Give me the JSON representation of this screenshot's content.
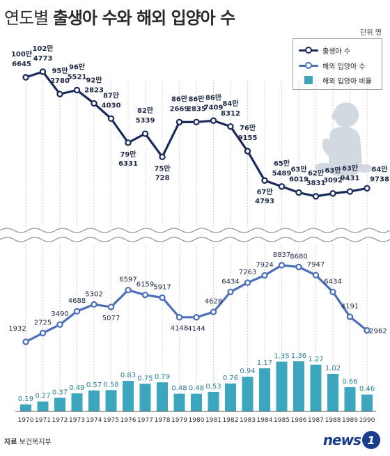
{
  "header": {
    "title_lead": "연도별",
    "title_main": "출생아 수와 해외 입양아 수",
    "unit": "단위 명"
  },
  "legend": {
    "births": "출생아 수",
    "adoptions": "해외 입양아 수",
    "ratio": "해외 입양아 비율"
  },
  "footer": {
    "source_label": "자료",
    "source_name": "보건복지부",
    "logo_text": "news",
    "logo_badge": "1"
  },
  "colors": {
    "births": "#1b2a5c",
    "adoptions": "#4a6fb8",
    "ratio": "#3ba6bd"
  },
  "chart_data": {
    "type": "line",
    "title": "연도별 출생아 수와 해외 입양아 수",
    "unit": "단위 명",
    "x": [
      "1970",
      "1971",
      "1972",
      "1973",
      "1974",
      "1975",
      "1976",
      "1977",
      "1978",
      "1979",
      "1980",
      "1981",
      "1982",
      "1983",
      "1984",
      "1985",
      "1986",
      "1987",
      "1988",
      "1989",
      "1990"
    ],
    "series": [
      {
        "name": "출생아 수",
        "type": "line",
        "values": [
          1006645,
          1024773,
          952780,
          965521,
          922823,
          874030,
          796331,
          825339,
          750728,
          862669,
          862835,
          867409,
          848312,
          769155,
          674793,
          655489,
          636019,
          623831,
          633092,
          639431,
          649738
        ],
        "label_top": [
          "100만",
          "102만",
          "95만",
          "96만",
          "92만",
          "87만",
          "79만",
          "82만",
          "75만",
          "86만",
          "86만",
          "86만",
          "84만",
          "76만",
          "67만",
          "65만",
          "63만",
          "62만",
          "63만",
          "63만",
          "64만"
        ],
        "label_bottom": [
          "6645",
          "4773",
          "2780",
          "5521",
          "2823",
          "4030",
          "6331",
          "5339",
          "728",
          "2669",
          "2835",
          "7409",
          "8312",
          "9155",
          "4793",
          "5489",
          "6019",
          "3831",
          "3092",
          "9431",
          "9738"
        ]
      },
      {
        "name": "해외 입양아 수",
        "type": "line",
        "values": [
          1932,
          2725,
          3490,
          4688,
          5302,
          5077,
          6597,
          6159,
          5917,
          4148,
          4144,
          4628,
          6434,
          7263,
          7924,
          8837,
          8680,
          7947,
          6434,
          4191,
          2962
        ]
      },
      {
        "name": "해외 입양아 비율",
        "type": "bar",
        "values": [
          0.19,
          0.27,
          0.37,
          0.49,
          0.57,
          0.58,
          0.83,
          0.75,
          0.79,
          0.48,
          0.48,
          0.53,
          0.76,
          0.94,
          1.17,
          1.35,
          1.36,
          1.27,
          1.02,
          0.66,
          0.46
        ]
      }
    ],
    "legend_position": "top-right",
    "grid": false
  }
}
